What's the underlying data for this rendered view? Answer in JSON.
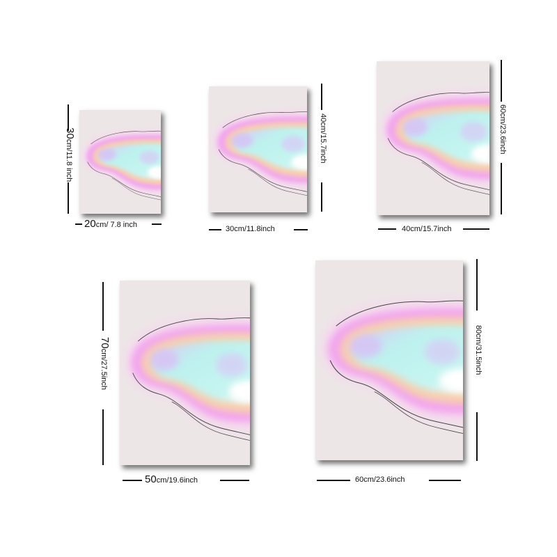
{
  "sizes": [
    {
      "width_label": {
        "num": "20",
        "unit": "cm/ 7.8 inch"
      },
      "height_label": {
        "num": "30",
        "unit": "cm/11.8 inch"
      }
    },
    {
      "width_label": {
        "num": "",
        "unit": "30cm/11.8inch"
      },
      "height_label": {
        "num": "",
        "unit": "40cm/15.7inch"
      }
    },
    {
      "width_label": {
        "num": "",
        "unit": "40cm/15.7inch"
      },
      "height_label": {
        "num": "",
        "unit": "60cm/23.6inch"
      }
    },
    {
      "width_label": {
        "num": "50",
        "unit": "cm/19.6inch"
      },
      "height_label": {
        "num": "70",
        "unit": "cm/27.5inch"
      }
    },
    {
      "width_label": {
        "num": "",
        "unit": "60cm/23.6inch"
      },
      "height_label": {
        "num": "",
        "unit": "80cm/31.5inch"
      }
    }
  ],
  "colors": {
    "canvas_background": "#ece7e6",
    "pink_band": "#f2a6ee",
    "peach_band": "#f7cfae",
    "aqua_core": "#bff3ee",
    "lavender_glow": "#d6c5f5",
    "dimension_line": "#111111"
  }
}
